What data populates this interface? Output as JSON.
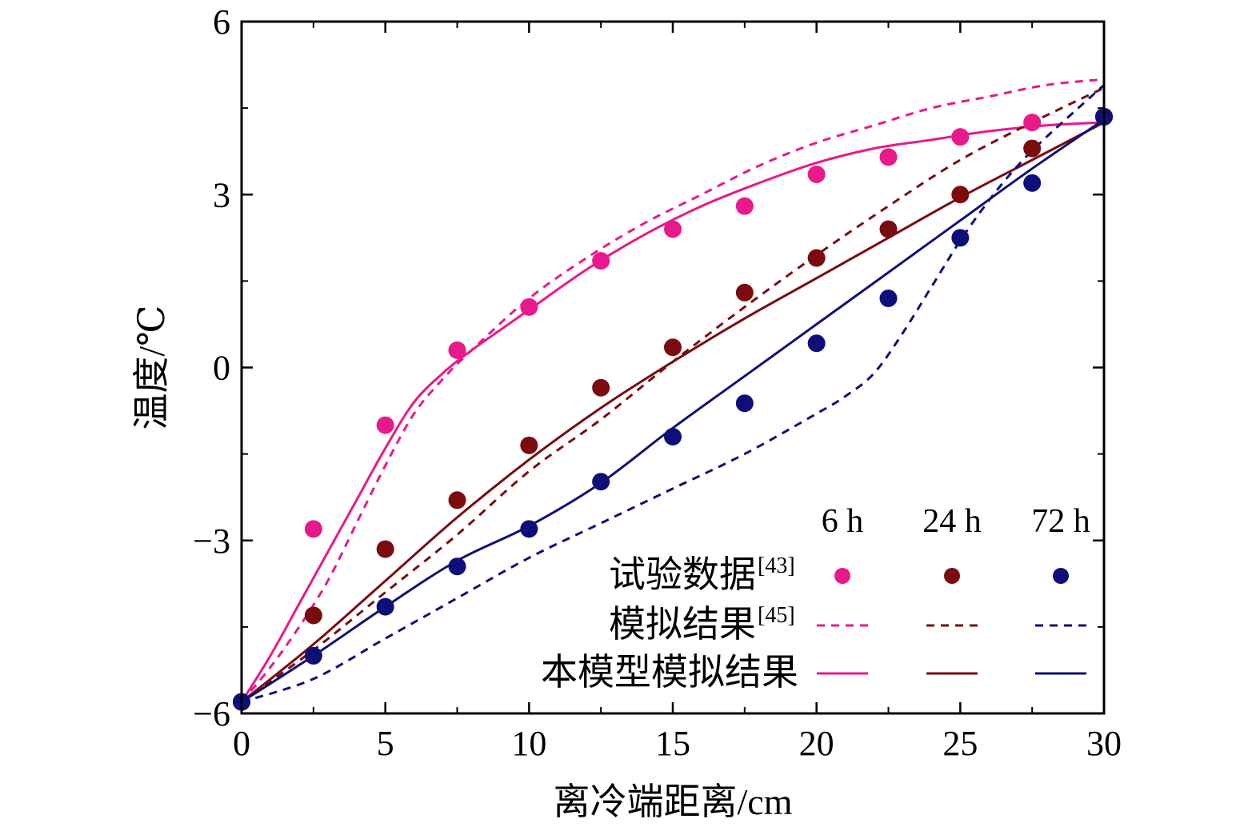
{
  "chart_data": {
    "type": "line",
    "xlabel": "离冷端距离/cm",
    "ylabel": "温度/℃",
    "xlim": [
      0,
      30
    ],
    "ylim": [
      -6,
      6
    ],
    "x_ticks": [
      0,
      5,
      10,
      15,
      20,
      25,
      30
    ],
    "x_tick_labels": [
      "0",
      "5",
      "10",
      "15",
      "20",
      "25",
      "30"
    ],
    "y_ticks": [
      -6,
      -3,
      0,
      3,
      6
    ],
    "y_tick_labels": [
      "−6",
      "−3",
      "0",
      "3",
      "6"
    ],
    "grid": false,
    "legend": {
      "placement": "bottom-right",
      "columns": [
        "6 h",
        "24 h",
        "72 h"
      ],
      "rows": [
        {
          "label": "试验数据",
          "ref": "[43]",
          "style": "marker"
        },
        {
          "label": "模拟结果",
          "ref": "[45]",
          "style": "dashed"
        },
        {
          "label": "本模型模拟结果",
          "ref": "",
          "style": "solid"
        }
      ]
    },
    "colors": {
      "6 h": "#e8198b",
      "24 h": "#7a0c10",
      "72 h": "#0f0f7a"
    },
    "groups": [
      {
        "name": "6 h",
        "experimental": {
          "x": [
            0,
            2.5,
            5,
            7.5,
            10,
            12.5,
            15,
            17.5,
            20,
            22.5,
            25,
            27.5,
            30
          ],
          "y": [
            -5.8,
            -2.8,
            -1.0,
            0.3,
            1.05,
            1.85,
            2.4,
            2.8,
            3.35,
            3.65,
            4.0,
            4.25,
            4.35
          ]
        },
        "simulation_ref": {
          "x": [
            0,
            1,
            2,
            3,
            4,
            5,
            6,
            7,
            8,
            10,
            12,
            14,
            16,
            18,
            20,
            22,
            24,
            26,
            28,
            30
          ],
          "y": [
            -5.8,
            -5.2,
            -4.5,
            -3.7,
            -2.7,
            -1.7,
            -0.8,
            -0.2,
            0.3,
            1.2,
            1.9,
            2.5,
            3.0,
            3.5,
            3.9,
            4.2,
            4.5,
            4.7,
            4.9,
            5.0
          ]
        },
        "simulation_this": {
          "x": [
            0,
            1,
            2,
            3,
            4,
            5,
            6,
            7,
            8,
            10,
            12,
            14,
            16,
            18,
            20,
            22,
            24,
            26,
            28,
            30
          ],
          "y": [
            -5.8,
            -5.0,
            -4.1,
            -3.2,
            -2.3,
            -1.4,
            -0.6,
            -0.1,
            0.3,
            1.0,
            1.7,
            2.3,
            2.8,
            3.2,
            3.55,
            3.8,
            3.95,
            4.1,
            4.2,
            4.25
          ]
        }
      },
      {
        "name": "24 h",
        "experimental": {
          "x": [
            0,
            2.5,
            5,
            7.5,
            10,
            12.5,
            15,
            17.5,
            20,
            22.5,
            25,
            27.5,
            30
          ],
          "y": [
            -5.8,
            -4.3,
            -3.15,
            -2.3,
            -1.35,
            -0.35,
            0.35,
            1.3,
            1.9,
            2.4,
            3.0,
            3.8,
            4.35
          ]
        },
        "simulation_ref": {
          "x": [
            0,
            2.5,
            5,
            7.5,
            10,
            12.5,
            15,
            17.5,
            20,
            22.5,
            25,
            27.5,
            30
          ],
          "y": [
            -5.8,
            -4.9,
            -3.9,
            -2.9,
            -1.8,
            -0.9,
            0.1,
            1.05,
            1.95,
            2.8,
            3.6,
            4.25,
            4.85
          ]
        },
        "simulation_this": {
          "x": [
            0,
            2.5,
            5,
            7.5,
            10,
            12.5,
            15,
            17.5,
            20,
            22.5,
            25,
            27.5,
            30
          ],
          "y": [
            -5.8,
            -4.8,
            -3.7,
            -2.6,
            -1.6,
            -0.7,
            0.1,
            0.85,
            1.55,
            2.25,
            2.95,
            3.6,
            4.25
          ]
        }
      },
      {
        "name": "72 h",
        "experimental": {
          "x": [
            0,
            2.5,
            5,
            7.5,
            10,
            12.5,
            15,
            17.5,
            20,
            22.5,
            25,
            27.5,
            30
          ],
          "y": [
            -5.8,
            -5.0,
            -4.15,
            -3.45,
            -2.8,
            -1.98,
            -1.2,
            -0.62,
            0.42,
            1.2,
            2.25,
            3.2,
            4.35
          ]
        },
        "simulation_ref": {
          "x": [
            0,
            2.5,
            5,
            7.5,
            10,
            12.5,
            15,
            17.5,
            20,
            21,
            22,
            23,
            24,
            25,
            26,
            27,
            28,
            30
          ],
          "y": [
            -5.8,
            -5.4,
            -4.7,
            -4.0,
            -3.3,
            -2.7,
            -2.1,
            -1.5,
            -0.8,
            -0.5,
            -0.1,
            0.6,
            1.4,
            2.2,
            2.9,
            3.5,
            4.0,
            4.9
          ]
        },
        "simulation_this": {
          "x": [
            0,
            2.5,
            5,
            7.5,
            10,
            12.5,
            15,
            17.5,
            20,
            22.5,
            25,
            27.5,
            30
          ],
          "y": [
            -5.8,
            -5.0,
            -4.15,
            -3.35,
            -2.75,
            -2.0,
            -1.05,
            -0.15,
            0.75,
            1.65,
            2.55,
            3.45,
            4.3
          ]
        }
      }
    ]
  }
}
